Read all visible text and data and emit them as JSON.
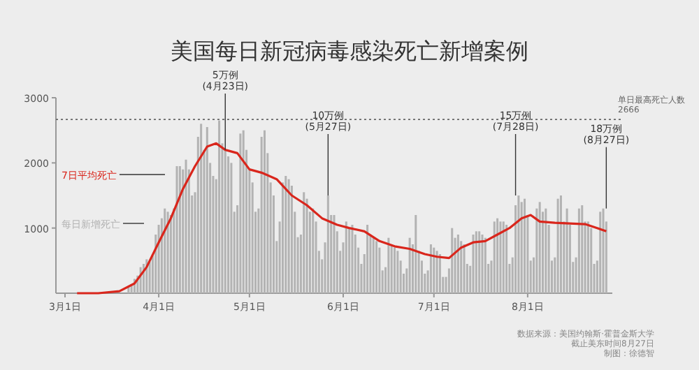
{
  "chart_data": {
    "type": "bar",
    "title": "美国每日新冠病毒感染死亡新增案例",
    "x": [
      "--03-01",
      "--03-02",
      "--03-03",
      "--03-04",
      "--03-05",
      "--03-06",
      "--03-07",
      "--03-08",
      "--03-09",
      "--03-10",
      "--03-11",
      "--03-12",
      "--03-13",
      "--03-14",
      "--03-15",
      "--03-16",
      "--03-17",
      "--03-18",
      "--03-19",
      "--03-20",
      "--03-21",
      "--03-22",
      "--03-23",
      "--03-24",
      "--03-25",
      "--03-26",
      "--03-27",
      "--03-28",
      "--03-29",
      "--03-30",
      "--03-31",
      "--04-01",
      "--04-02",
      "--04-03",
      "--04-04",
      "--04-05",
      "--04-06",
      "--04-07",
      "--04-08",
      "--04-09",
      "--04-10",
      "--04-11",
      "--04-12",
      "--04-13",
      "--04-14",
      "--04-15",
      "--04-16",
      "--04-17",
      "--04-18",
      "--04-19",
      "--04-20",
      "--04-21",
      "--04-22",
      "--04-23",
      "--04-24",
      "--04-25",
      "--04-26",
      "--04-27",
      "--04-28",
      "--04-29",
      "--04-30",
      "--05-01",
      "--05-02",
      "--05-03",
      "--05-04",
      "--05-05",
      "--05-06",
      "--05-07",
      "--05-08",
      "--05-09",
      "--05-10",
      "--05-11",
      "--05-12",
      "--05-13",
      "--05-14",
      "--05-15",
      "--05-16",
      "--05-17",
      "--05-18",
      "--05-19",
      "--05-20",
      "--05-21",
      "--05-22",
      "--05-23",
      "--05-24",
      "--05-25",
      "--05-26",
      "--05-27",
      "--05-28",
      "--05-29",
      "--05-30",
      "--05-31",
      "--06-01",
      "--06-02",
      "--06-03",
      "--06-04",
      "--06-05",
      "--06-06",
      "--06-07",
      "--06-08",
      "--06-09",
      "--06-10",
      "--06-11",
      "--06-12",
      "--06-13",
      "--06-14",
      "--06-15",
      "--06-16",
      "--06-17",
      "--06-18",
      "--06-19",
      "--06-20",
      "--06-21",
      "--06-22",
      "--06-23",
      "--06-24",
      "--06-25",
      "--06-26",
      "--06-27",
      "--06-28",
      "--06-29",
      "--06-30",
      "--07-01",
      "--07-02",
      "--07-03",
      "--07-04",
      "--07-05",
      "--07-06",
      "--07-07",
      "--07-08",
      "--07-09",
      "--07-10",
      "--07-11",
      "--07-12",
      "--07-13",
      "--07-14",
      "--07-15",
      "--07-16",
      "--07-17",
      "--07-18",
      "--07-19",
      "--07-20",
      "--07-21",
      "--07-22",
      "--07-23",
      "--07-24",
      "--07-25",
      "--07-26",
      "--07-27",
      "--07-28",
      "--07-29",
      "--07-30",
      "--07-31",
      "--08-01",
      "--08-02",
      "--08-03",
      "--08-04",
      "--08-05",
      "--08-06",
      "--08-07",
      "--08-08",
      "--08-09",
      "--08-10",
      "--08-11",
      "--08-12",
      "--08-13",
      "--08-14",
      "--08-15",
      "--08-16",
      "--08-17",
      "--08-18",
      "--08-19",
      "--08-20",
      "--08-21",
      "--08-22",
      "--08-23",
      "--08-24",
      "--08-25",
      "--08-26",
      "--08-27"
    ],
    "series": [
      {
        "name": "每日新增死亡",
        "color": "#b3b3b3",
        "values": [
          0,
          0,
          0,
          0,
          0,
          0,
          0,
          0,
          0,
          0,
          0,
          0,
          0,
          0,
          0,
          0,
          0,
          0,
          0,
          0,
          0,
          110,
          140,
          220,
          270,
          400,
          450,
          520,
          480,
          600,
          900,
          1050,
          1150,
          1300,
          1250,
          1200,
          1300,
          1950,
          1950,
          1900,
          2050,
          1900,
          1500,
          1550,
          2400,
          2600,
          2200,
          2550,
          2000,
          1800,
          1750,
          2650,
          2300,
          2200,
          2100,
          2000,
          1250,
          1350,
          2450,
          2500,
          2200,
          1900,
          1700,
          1250,
          1300,
          2400,
          2500,
          2150,
          1700,
          1500,
          800,
          1100,
          1700,
          1800,
          1750,
          1650,
          1250,
          860,
          900,
          1550,
          1450,
          1250,
          1300,
          1100,
          650,
          520,
          780,
          1500,
          1200,
          1200,
          950,
          650,
          780,
          1100,
          1000,
          1050,
          900,
          700,
          450,
          600,
          1050,
          900,
          850,
          800,
          700,
          350,
          400,
          850,
          750,
          700,
          650,
          500,
          300,
          380,
          850,
          750,
          1200,
          650,
          500,
          300,
          350,
          750,
          700,
          650,
          600,
          250,
          250,
          380,
          1000,
          850,
          900,
          800,
          750,
          450,
          420,
          900,
          950,
          950,
          900,
          850,
          450,
          500,
          1100,
          1150,
          1100,
          1100,
          1050,
          450,
          550,
          1350,
          1500,
          1400,
          1450,
          1200,
          500,
          550,
          1300,
          1400,
          1250,
          1300,
          1050,
          500,
          550,
          1450,
          1500,
          1100,
          1300,
          1050,
          480,
          550,
          1300,
          1350,
          1100,
          1100,
          1000,
          450,
          500,
          1250,
          1300,
          1100
        ]
      },
      {
        "name": "7日平均死亡",
        "type": "line",
        "color": "#d9261c",
        "x": [
          "--03-05",
          "--03-12",
          "--03-19",
          "--03-24",
          "--03-28",
          "--04-01",
          "--04-05",
          "--04-09",
          "--04-13",
          "--04-17",
          "--04-20",
          "--04-23",
          "--04-27",
          "--05-01",
          "--05-05",
          "--05-10",
          "--05-15",
          "--05-20",
          "--05-25",
          "--05-30",
          "--06-03",
          "--06-08",
          "--06-13",
          "--06-18",
          "--06-23",
          "--06-28",
          "--07-02",
          "--07-06",
          "--07-10",
          "--07-14",
          "--07-18",
          "--07-22",
          "--07-26",
          "--07-30",
          "--08-02",
          "--08-05",
          "--08-10",
          "--08-15",
          "--08-20",
          "--08-24",
          "--08-27"
        ],
        "values": [
          0,
          0,
          30,
          150,
          400,
          780,
          1150,
          1600,
          1950,
          2250,
          2300,
          2200,
          2150,
          1900,
          1850,
          1750,
          1500,
          1350,
          1150,
          1050,
          1000,
          950,
          800,
          720,
          680,
          600,
          560,
          540,
          700,
          780,
          800,
          900,
          1000,
          1150,
          1200,
          1100,
          1080,
          1070,
          1060,
          1000,
          950
        ]
      }
    ],
    "xlim": [
      "--02-27",
      "--08-29"
    ],
    "xticks": [
      {
        "value": "--03-01",
        "label": "3月1日"
      },
      {
        "value": "--04-01",
        "label": "4月1日"
      },
      {
        "value": "--05-01",
        "label": "5月1日"
      },
      {
        "value": "--06-01",
        "label": "6月1日"
      },
      {
        "value": "--07-01",
        "label": "7月1日"
      },
      {
        "value": "--08-01",
        "label": "8月1日"
      }
    ],
    "ylim": [
      0,
      3000
    ],
    "yticks": [
      1000,
      2000,
      3000
    ],
    "ref_lines": [
      {
        "axis": "y",
        "value": 2666,
        "label": "单日最高死亡人数\n2666",
        "color": "#666666",
        "line_style": "dotted"
      }
    ],
    "annotations": [
      {
        "text": "5万例\n(4月23日)",
        "x": "--04-23",
        "y": 2200
      },
      {
        "text": "10万例\n(5月27日)",
        "x": "--05-27",
        "y": 1500
      },
      {
        "text": "15万例\n(7月28日)",
        "x": "--07-28",
        "y": 1500
      },
      {
        "text": "18万例\n(8月27日)",
        "x": "--08-27",
        "y": 1300
      },
      "数据来源：美国约翰斯·霍普金斯大学",
      "截止美东时间8月27日",
      "制图：徐德智"
    ]
  }
}
